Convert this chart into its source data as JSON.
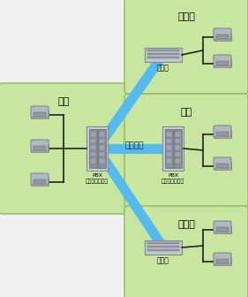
{
  "bg_color": "#f0f0f0",
  "box_color": "#c8e6a0",
  "box_edge": "#90b860",
  "blue_line_color": "#55bbee",
  "black_line_color": "#222222",
  "honsha_label": "本社",
  "shiten_label": "支店",
  "eigyo1_label": "営業所",
  "eigyo2_label": "営業所",
  "pbx1_label": "PBX\n（構内交換機）",
  "pbx2_label": "PBX\n（構内交換機）",
  "souchi_label": "主装置",
  "voice_label": "音声伝送"
}
